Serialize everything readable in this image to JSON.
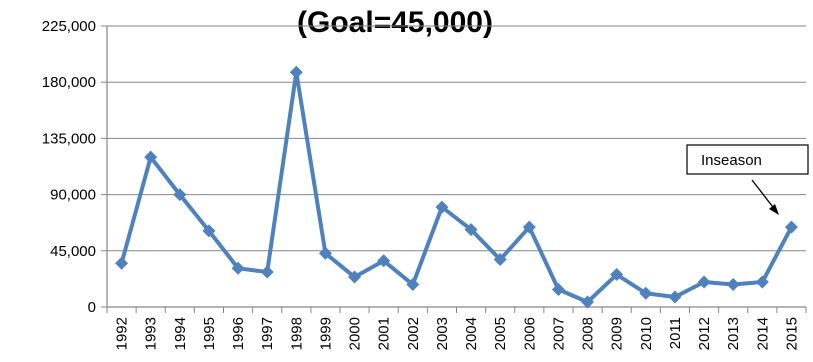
{
  "chart_data": {
    "type": "line",
    "title": "(Goal=45,000)",
    "xlabel": "",
    "ylabel": "",
    "ylim": [
      0,
      225000
    ],
    "y_ticks": [
      "0",
      "45,000",
      "90,000",
      "135,000",
      "180,000",
      "225,000"
    ],
    "y_tick_values": [
      0,
      45000,
      90000,
      135000,
      180000,
      225000
    ],
    "categories": [
      "1992",
      "1993",
      "1994",
      "1995",
      "1996",
      "1997",
      "1998",
      "1999",
      "2000",
      "2001",
      "2002",
      "2003",
      "2004",
      "2005",
      "2006",
      "2007",
      "2008",
      "2009",
      "2010",
      "2011",
      "2012",
      "2013",
      "2014",
      "2015"
    ],
    "series": [
      {
        "values": [
          35000,
          120000,
          90000,
          61000,
          31000,
          28000,
          188000,
          43000,
          24000,
          37000,
          18000,
          80000,
          62000,
          38000,
          64000,
          14000,
          4000,
          26000,
          11000,
          8000,
          20000,
          18000,
          20000,
          64000
        ],
        "color": "#4f81bd"
      }
    ],
    "grid": {
      "horizontal": true,
      "vertical": false,
      "color": "#868686"
    },
    "legend": "none",
    "annotation": {
      "text": "Inseason",
      "target_category": "2015"
    }
  }
}
